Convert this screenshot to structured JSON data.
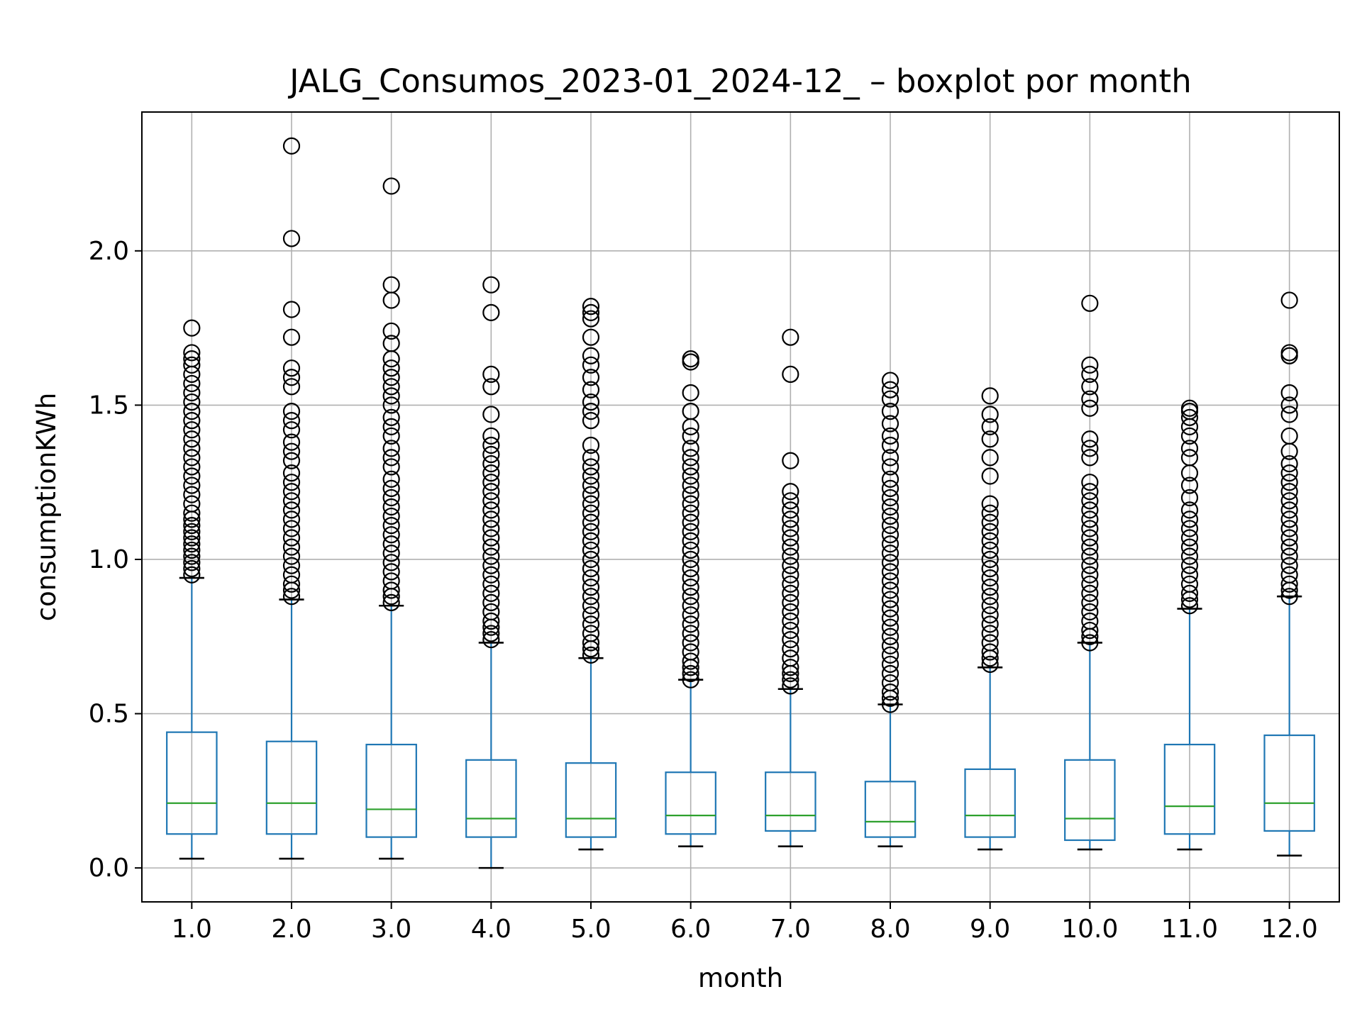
{
  "chart_data": {
    "type": "boxplot",
    "title": "JALG_Consumos_2023-01_2024-12_ – boxplot por month",
    "xlabel": "month",
    "ylabel": "consumptionKWh",
    "categories": [
      "1.0",
      "2.0",
      "3.0",
      "4.0",
      "5.0",
      "6.0",
      "7.0",
      "8.0",
      "9.0",
      "10.0",
      "11.0",
      "12.0"
    ],
    "ylim": [
      -0.11,
      2.45
    ],
    "yticks": [
      0.0,
      0.5,
      1.0,
      1.5,
      2.0
    ],
    "ytick_labels": [
      "0.0",
      "0.5",
      "1.0",
      "1.5",
      "2.0"
    ],
    "grid": true,
    "colors": {
      "box": "#1f77b4",
      "median": "#2ca02c",
      "whisker_cap": "#000000",
      "outlier": "#000000",
      "grid": "#b0b0b0"
    },
    "boxes": [
      {
        "category": "1.0",
        "whislo": 0.03,
        "q1": 0.11,
        "median": 0.21,
        "q3": 0.44,
        "whishi": 0.94,
        "outlier_max": 1.75,
        "outliers": [
          0.95,
          0.97,
          0.99,
          1.01,
          1.03,
          1.05,
          1.07,
          1.09,
          1.11,
          1.13,
          1.15,
          1.18,
          1.21,
          1.24,
          1.27,
          1.3,
          1.33,
          1.36,
          1.39,
          1.42,
          1.45,
          1.48,
          1.51,
          1.54,
          1.57,
          1.6,
          1.63,
          1.65,
          1.67,
          1.75
        ]
      },
      {
        "category": "2.0",
        "whislo": 0.03,
        "q1": 0.11,
        "median": 0.21,
        "q3": 0.41,
        "whishi": 0.87,
        "outlier_max": 2.34,
        "outliers": [
          0.88,
          0.9,
          0.92,
          0.95,
          0.98,
          1.01,
          1.04,
          1.07,
          1.1,
          1.13,
          1.16,
          1.19,
          1.22,
          1.25,
          1.28,
          1.32,
          1.35,
          1.38,
          1.42,
          1.45,
          1.48,
          1.56,
          1.59,
          1.62,
          1.72,
          1.81,
          2.04,
          2.34
        ]
      },
      {
        "category": "3.0",
        "whislo": 0.03,
        "q1": 0.1,
        "median": 0.19,
        "q3": 0.4,
        "whishi": 0.85,
        "outlier_max": 2.21,
        "outliers": [
          0.86,
          0.88,
          0.9,
          0.93,
          0.96,
          0.99,
          1.02,
          1.05,
          1.08,
          1.11,
          1.14,
          1.17,
          1.2,
          1.23,
          1.26,
          1.3,
          1.33,
          1.36,
          1.4,
          1.43,
          1.46,
          1.5,
          1.53,
          1.56,
          1.59,
          1.62,
          1.65,
          1.7,
          1.74,
          1.84,
          1.89,
          2.21
        ]
      },
      {
        "category": "4.0",
        "whislo": 0.0,
        "q1": 0.1,
        "median": 0.16,
        "q3": 0.35,
        "whishi": 0.73,
        "outlier_max": 1.89,
        "outliers": [
          0.74,
          0.76,
          0.78,
          0.8,
          0.83,
          0.86,
          0.89,
          0.92,
          0.95,
          0.98,
          1.01,
          1.04,
          1.07,
          1.1,
          1.13,
          1.16,
          1.19,
          1.22,
          1.25,
          1.28,
          1.31,
          1.34,
          1.37,
          1.4,
          1.47,
          1.56,
          1.6,
          1.8,
          1.89
        ]
      },
      {
        "category": "5.0",
        "whislo": 0.06,
        "q1": 0.1,
        "median": 0.16,
        "q3": 0.34,
        "whishi": 0.68,
        "outlier_max": 1.82,
        "outliers": [
          0.69,
          0.71,
          0.73,
          0.76,
          0.79,
          0.82,
          0.85,
          0.88,
          0.91,
          0.94,
          0.97,
          1.0,
          1.03,
          1.06,
          1.09,
          1.12,
          1.15,
          1.18,
          1.21,
          1.24,
          1.27,
          1.3,
          1.33,
          1.37,
          1.45,
          1.48,
          1.51,
          1.55,
          1.59,
          1.63,
          1.66,
          1.72,
          1.78,
          1.8,
          1.82
        ]
      },
      {
        "category": "6.0",
        "whislo": 0.07,
        "q1": 0.11,
        "median": 0.17,
        "q3": 0.31,
        "whishi": 0.61,
        "outlier_max": 1.65,
        "outliers": [
          0.61,
          0.63,
          0.65,
          0.67,
          0.7,
          0.73,
          0.76,
          0.79,
          0.82,
          0.85,
          0.88,
          0.91,
          0.94,
          0.97,
          1.0,
          1.03,
          1.06,
          1.09,
          1.12,
          1.15,
          1.18,
          1.21,
          1.24,
          1.27,
          1.3,
          1.33,
          1.36,
          1.4,
          1.43,
          1.48,
          1.54,
          1.64,
          1.65
        ]
      },
      {
        "category": "7.0",
        "whislo": 0.07,
        "q1": 0.12,
        "median": 0.17,
        "q3": 0.31,
        "whishi": 0.58,
        "outlier_max": 1.72,
        "outliers": [
          0.59,
          0.61,
          0.63,
          0.65,
          0.68,
          0.71,
          0.74,
          0.77,
          0.8,
          0.83,
          0.86,
          0.89,
          0.92,
          0.95,
          0.98,
          1.01,
          1.04,
          1.07,
          1.1,
          1.13,
          1.16,
          1.19,
          1.22,
          1.32,
          1.6,
          1.72
        ]
      },
      {
        "category": "8.0",
        "whislo": 0.07,
        "q1": 0.1,
        "median": 0.15,
        "q3": 0.28,
        "whishi": 0.53,
        "outlier_max": 1.58,
        "outliers": [
          0.53,
          0.55,
          0.57,
          0.6,
          0.63,
          0.66,
          0.69,
          0.72,
          0.75,
          0.78,
          0.81,
          0.84,
          0.87,
          0.9,
          0.93,
          0.96,
          0.99,
          1.02,
          1.05,
          1.08,
          1.11,
          1.14,
          1.17,
          1.2,
          1.23,
          1.26,
          1.3,
          1.33,
          1.37,
          1.4,
          1.44,
          1.48,
          1.52,
          1.55,
          1.58
        ]
      },
      {
        "category": "9.0",
        "whislo": 0.06,
        "q1": 0.1,
        "median": 0.17,
        "q3": 0.32,
        "whishi": 0.65,
        "outlier_max": 1.53,
        "outliers": [
          0.66,
          0.68,
          0.7,
          0.73,
          0.76,
          0.79,
          0.82,
          0.85,
          0.88,
          0.91,
          0.94,
          0.97,
          1.0,
          1.03,
          1.06,
          1.09,
          1.12,
          1.15,
          1.18,
          1.27,
          1.33,
          1.39,
          1.43,
          1.47,
          1.53
        ]
      },
      {
        "category": "10.0",
        "whislo": 0.06,
        "q1": 0.09,
        "median": 0.16,
        "q3": 0.35,
        "whishi": 0.73,
        "outlier_max": 1.83,
        "outliers": [
          0.73,
          0.75,
          0.77,
          0.8,
          0.83,
          0.86,
          0.89,
          0.92,
          0.95,
          0.98,
          1.01,
          1.04,
          1.07,
          1.1,
          1.13,
          1.16,
          1.19,
          1.22,
          1.25,
          1.33,
          1.36,
          1.39,
          1.49,
          1.52,
          1.56,
          1.6,
          1.63,
          1.83
        ]
      },
      {
        "category": "11.0",
        "whislo": 0.06,
        "q1": 0.11,
        "median": 0.2,
        "q3": 0.4,
        "whishi": 0.84,
        "outlier_max": 1.49,
        "outliers": [
          0.85,
          0.87,
          0.89,
          0.92,
          0.95,
          0.98,
          1.01,
          1.04,
          1.07,
          1.1,
          1.13,
          1.16,
          1.2,
          1.24,
          1.28,
          1.33,
          1.36,
          1.4,
          1.43,
          1.46,
          1.48,
          1.49
        ]
      },
      {
        "category": "12.0",
        "whislo": 0.04,
        "q1": 0.12,
        "median": 0.21,
        "q3": 0.43,
        "whishi": 0.88,
        "outlier_max": 1.84,
        "outliers": [
          0.88,
          0.9,
          0.92,
          0.95,
          0.98,
          1.01,
          1.04,
          1.07,
          1.1,
          1.13,
          1.16,
          1.19,
          1.22,
          1.25,
          1.28,
          1.31,
          1.35,
          1.4,
          1.47,
          1.5,
          1.54,
          1.66,
          1.67,
          1.84
        ]
      }
    ]
  }
}
